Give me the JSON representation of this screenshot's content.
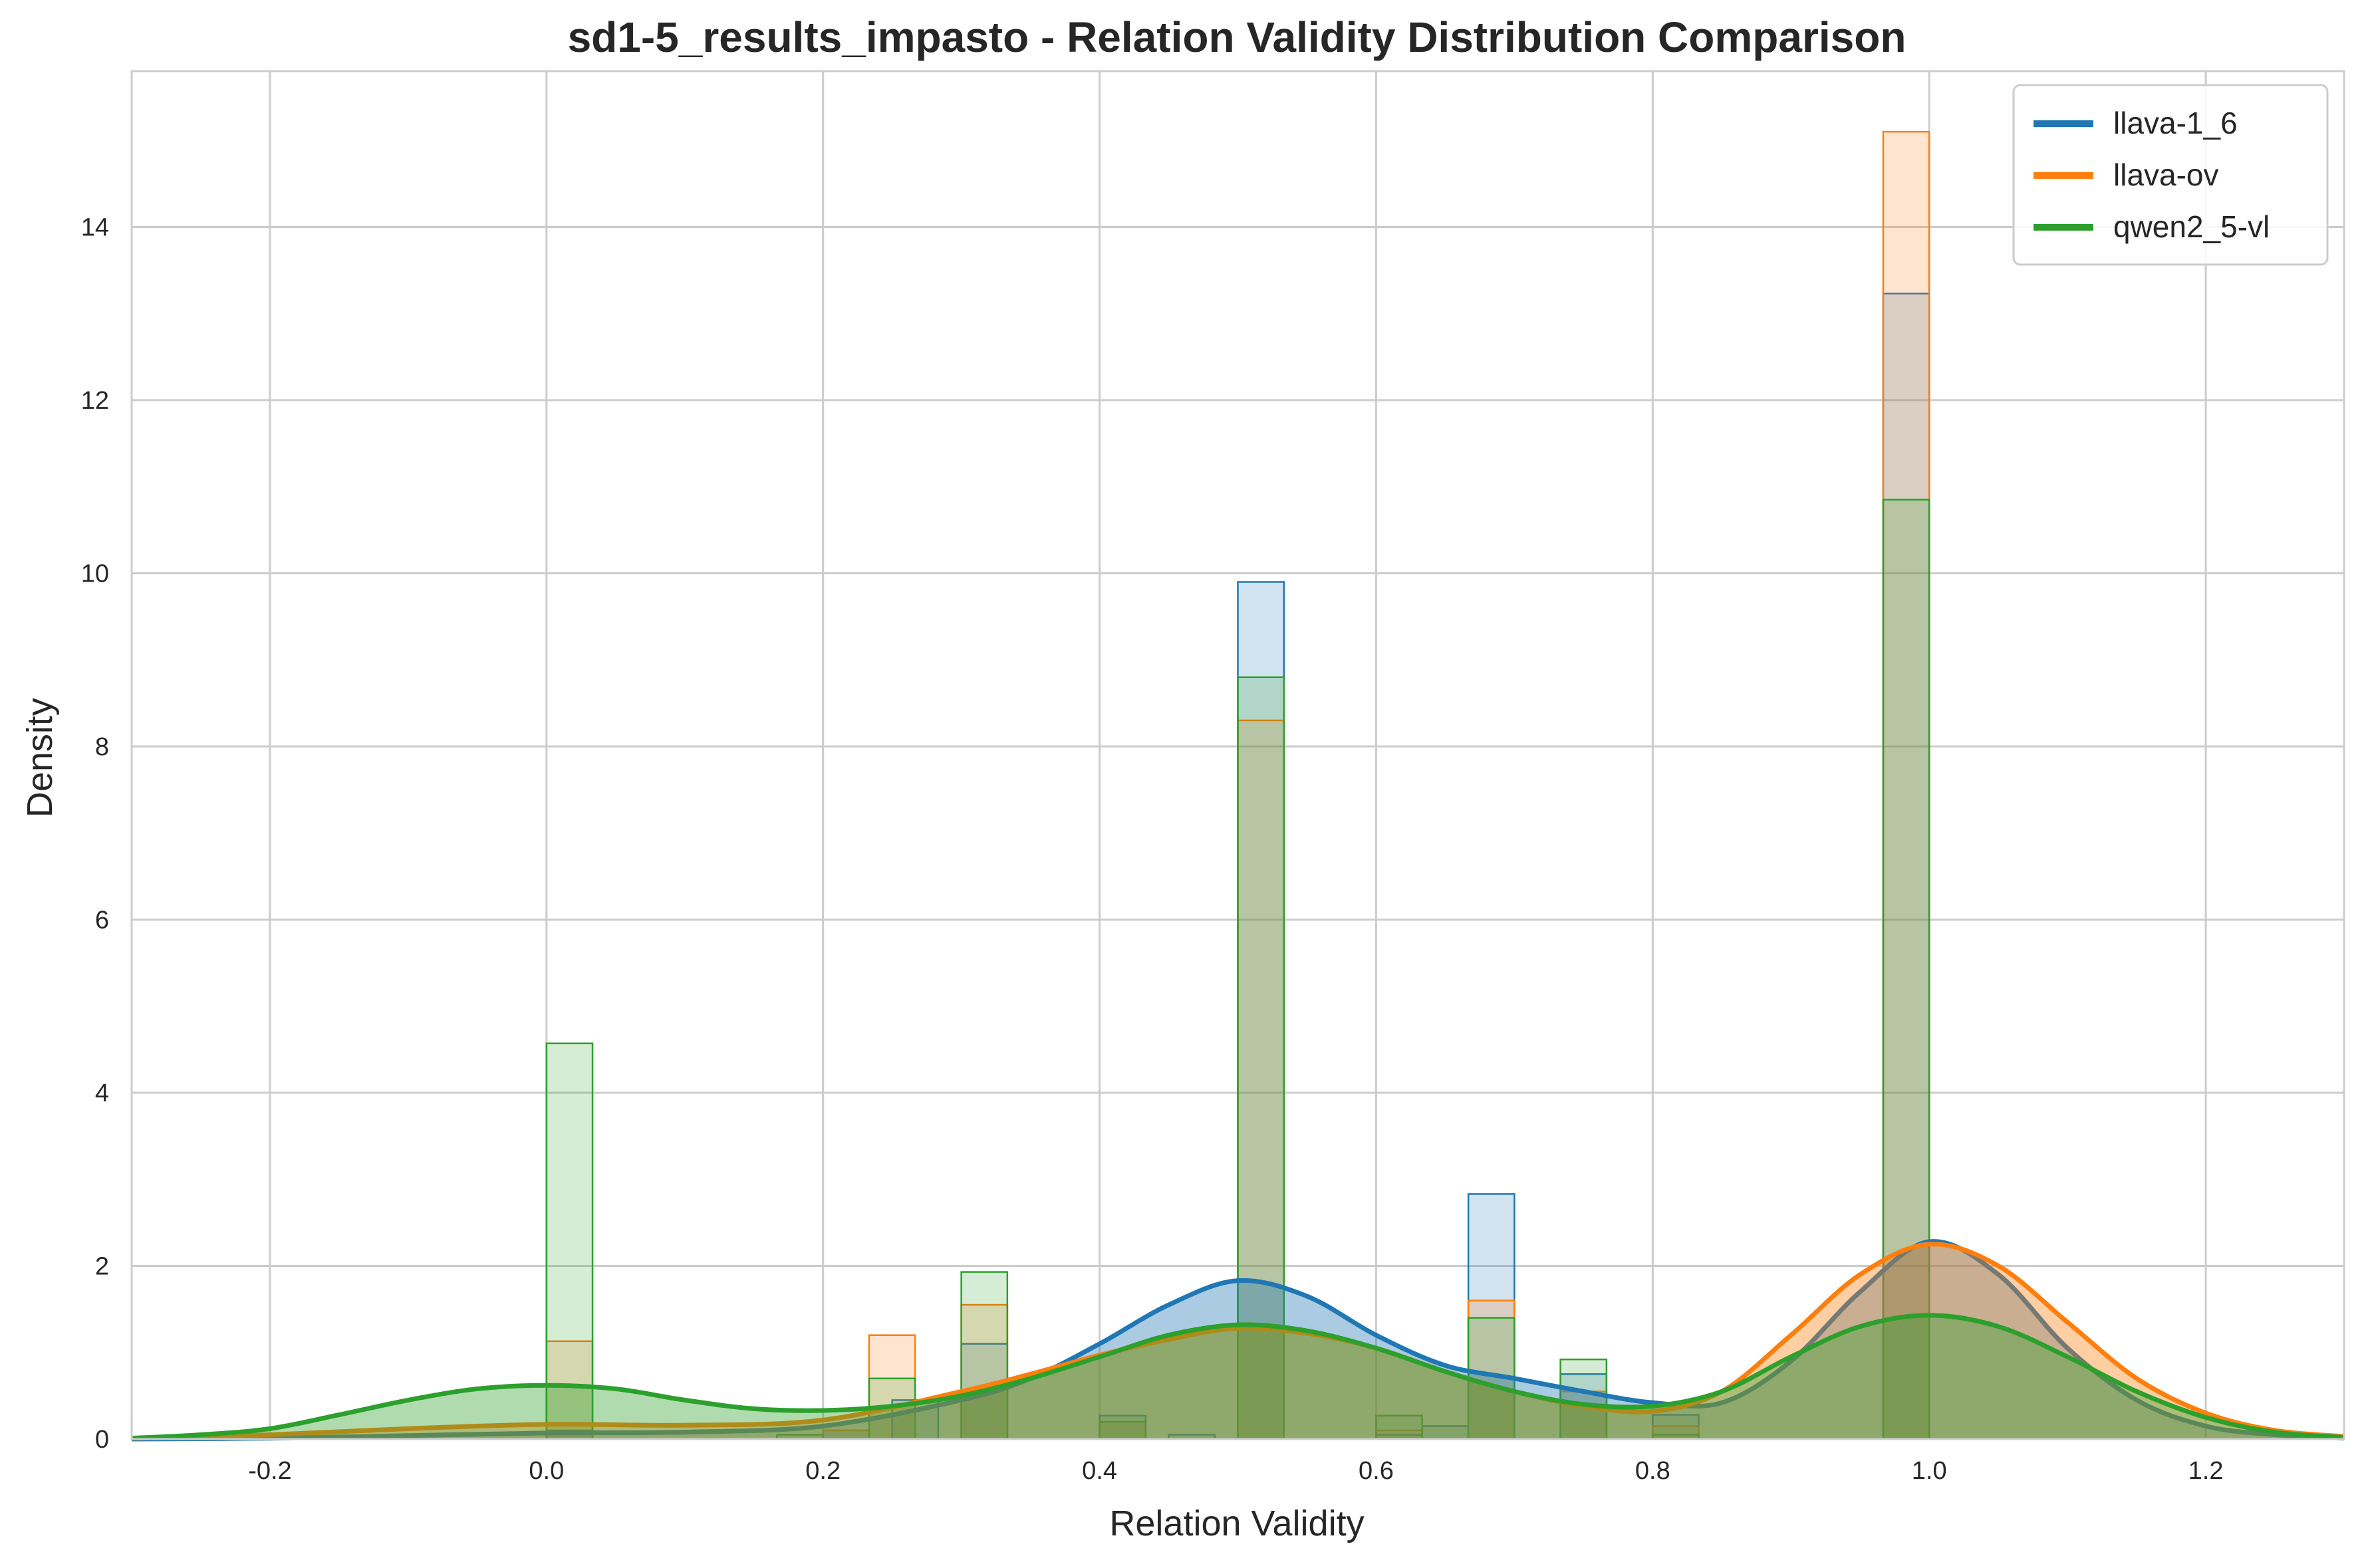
{
  "chart_data": {
    "type": "histogram",
    "title": "sd1-5_results_impasto - Relation Validity Distribution Comparison",
    "xlabel": "Relation Validity",
    "ylabel": "Density",
    "xlim": [
      -0.3,
      1.3
    ],
    "ylim": [
      0,
      15.8
    ],
    "x_ticks": [
      -0.2,
      0.0,
      0.2,
      0.4,
      0.6,
      0.8,
      1.0,
      1.2
    ],
    "x_tick_labels": [
      "-0.2",
      "0.0",
      "0.2",
      "0.4",
      "0.6",
      "0.8",
      "1.0",
      "1.2"
    ],
    "y_ticks": [
      0,
      2,
      4,
      6,
      8,
      10,
      12,
      14
    ],
    "y_tick_labels": [
      "0",
      "2",
      "4",
      "6",
      "8",
      "10",
      "12",
      "14"
    ],
    "grid": true,
    "legend_position": "top-right",
    "bin_width": 0.0333,
    "series": [
      {
        "name": "llava-1_6",
        "color": "#1f77b4",
        "bins": [
          {
            "x": 0.0,
            "value": 0.1
          },
          {
            "x": 0.2,
            "value": 0.1
          },
          {
            "x": 0.25,
            "value": 0.45
          },
          {
            "x": 0.3,
            "value": 1.1
          },
          {
            "x": 0.4,
            "value": 0.27
          },
          {
            "x": 0.45,
            "value": 0.05
          },
          {
            "x": 0.5,
            "value": 9.9
          },
          {
            "x": 0.6,
            "value": 0.05
          },
          {
            "x": 0.6333,
            "value": 0.15
          },
          {
            "x": 0.6667,
            "value": 2.83
          },
          {
            "x": 0.7333,
            "value": 0.75
          },
          {
            "x": 0.8,
            "value": 0.28
          },
          {
            "x": 0.9667,
            "value": 13.23
          }
        ],
        "kde": [
          [
            -0.3,
            0.0
          ],
          [
            -0.2,
            0.01
          ],
          [
            -0.1,
            0.04
          ],
          [
            0.0,
            0.07
          ],
          [
            0.1,
            0.08
          ],
          [
            0.2,
            0.15
          ],
          [
            0.3,
            0.45
          ],
          [
            0.35,
            0.7
          ],
          [
            0.4,
            1.1
          ],
          [
            0.45,
            1.55
          ],
          [
            0.5,
            1.83
          ],
          [
            0.55,
            1.65
          ],
          [
            0.6,
            1.2
          ],
          [
            0.65,
            0.85
          ],
          [
            0.7,
            0.7
          ],
          [
            0.75,
            0.55
          ],
          [
            0.8,
            0.42
          ],
          [
            0.85,
            0.42
          ],
          [
            0.9,
            0.9
          ],
          [
            0.95,
            1.7
          ],
          [
            1.0,
            2.28
          ],
          [
            1.05,
            1.9
          ],
          [
            1.1,
            1.05
          ],
          [
            1.15,
            0.45
          ],
          [
            1.2,
            0.15
          ],
          [
            1.25,
            0.05
          ],
          [
            1.3,
            0.01
          ]
        ]
      },
      {
        "name": "llava-ov",
        "color": "#ff7f0e",
        "bins": [
          {
            "x": 0.0,
            "value": 1.13
          },
          {
            "x": 0.2,
            "value": 0.1
          },
          {
            "x": 0.2333,
            "value": 1.2
          },
          {
            "x": 0.3,
            "value": 1.55
          },
          {
            "x": 0.4,
            "value": 0.2
          },
          {
            "x": 0.5,
            "value": 8.3
          },
          {
            "x": 0.6,
            "value": 0.1
          },
          {
            "x": 0.6667,
            "value": 1.6
          },
          {
            "x": 0.7333,
            "value": 0.55
          },
          {
            "x": 0.8,
            "value": 0.15
          },
          {
            "x": 0.9667,
            "value": 15.1
          }
        ],
        "kde": [
          [
            -0.3,
            0.01
          ],
          [
            -0.2,
            0.05
          ],
          [
            -0.1,
            0.12
          ],
          [
            0.0,
            0.17
          ],
          [
            0.1,
            0.16
          ],
          [
            0.2,
            0.22
          ],
          [
            0.3,
            0.55
          ],
          [
            0.35,
            0.75
          ],
          [
            0.4,
            0.97
          ],
          [
            0.45,
            1.15
          ],
          [
            0.5,
            1.28
          ],
          [
            0.55,
            1.22
          ],
          [
            0.6,
            1.05
          ],
          [
            0.65,
            0.78
          ],
          [
            0.7,
            0.55
          ],
          [
            0.75,
            0.38
          ],
          [
            0.8,
            0.32
          ],
          [
            0.85,
            0.55
          ],
          [
            0.9,
            1.2
          ],
          [
            0.95,
            1.9
          ],
          [
            1.0,
            2.25
          ],
          [
            1.05,
            2.0
          ],
          [
            1.1,
            1.35
          ],
          [
            1.15,
            0.7
          ],
          [
            1.2,
            0.3
          ],
          [
            1.25,
            0.1
          ],
          [
            1.3,
            0.03
          ]
        ]
      },
      {
        "name": "qwen2_5-vl",
        "color": "#2ca02c",
        "bins": [
          {
            "x": 0.0,
            "value": 4.57
          },
          {
            "x": 0.1667,
            "value": 0.05
          },
          {
            "x": 0.2333,
            "value": 0.7
          },
          {
            "x": 0.3,
            "value": 1.93
          },
          {
            "x": 0.4,
            "value": 0.2
          },
          {
            "x": 0.5,
            "value": 8.8
          },
          {
            "x": 0.6,
            "value": 0.27
          },
          {
            "x": 0.6667,
            "value": 1.4
          },
          {
            "x": 0.7333,
            "value": 0.92
          },
          {
            "x": 0.8,
            "value": 0.05
          },
          {
            "x": 0.9667,
            "value": 10.85
          }
        ],
        "kde": [
          [
            -0.3,
            0.01
          ],
          [
            -0.25,
            0.05
          ],
          [
            -0.2,
            0.12
          ],
          [
            -0.15,
            0.28
          ],
          [
            -0.1,
            0.45
          ],
          [
            -0.05,
            0.58
          ],
          [
            0.0,
            0.62
          ],
          [
            0.05,
            0.58
          ],
          [
            0.1,
            0.45
          ],
          [
            0.15,
            0.35
          ],
          [
            0.2,
            0.33
          ],
          [
            0.25,
            0.38
          ],
          [
            0.3,
            0.5
          ],
          [
            0.35,
            0.7
          ],
          [
            0.4,
            0.95
          ],
          [
            0.45,
            1.2
          ],
          [
            0.5,
            1.32
          ],
          [
            0.55,
            1.25
          ],
          [
            0.6,
            1.05
          ],
          [
            0.65,
            0.78
          ],
          [
            0.7,
            0.55
          ],
          [
            0.75,
            0.4
          ],
          [
            0.8,
            0.38
          ],
          [
            0.85,
            0.55
          ],
          [
            0.9,
            0.95
          ],
          [
            0.95,
            1.3
          ],
          [
            1.0,
            1.43
          ],
          [
            1.05,
            1.3
          ],
          [
            1.1,
            0.95
          ],
          [
            1.15,
            0.55
          ],
          [
            1.2,
            0.25
          ],
          [
            1.25,
            0.08
          ],
          [
            1.3,
            0.02
          ]
        ]
      }
    ]
  }
}
